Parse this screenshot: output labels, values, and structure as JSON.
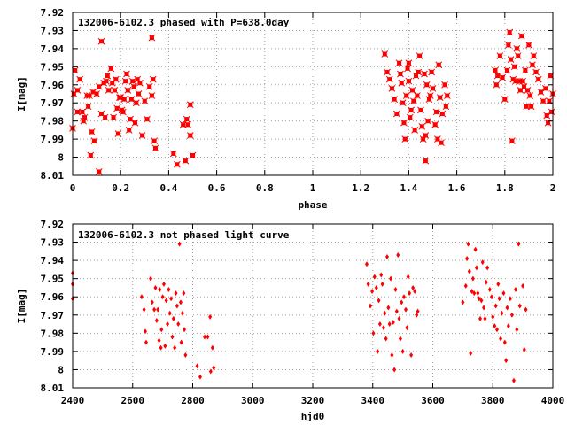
{
  "colors": {
    "points": "#ff0000",
    "axes": "#000000",
    "grid": "#a0a0a0",
    "background": "#ffffff"
  },
  "chart_data": [
    {
      "type": "scatter",
      "title": "132006-6102.3 phased with P=638.0day",
      "xlabel": "phase",
      "ylabel": "I[mag]",
      "xlim": [
        0,
        2
      ],
      "ylim": [
        8.01,
        7.92
      ],
      "y_inverted": true,
      "grid": true,
      "marker": "star",
      "xticks": [
        "0",
        "0.2",
        "0.4",
        "0.6",
        "0.8",
        "1",
        "1.2",
        "1.4",
        "1.6",
        "1.8",
        "2"
      ],
      "yticks": [
        "7.92",
        "7.93",
        "7.94",
        "7.95",
        "7.96",
        "7.97",
        "7.98",
        "7.99",
        "8",
        "8.01"
      ],
      "points": [
        [
          0.0,
          7.984
        ],
        [
          0.005,
          7.965
        ],
        [
          0.01,
          7.952
        ],
        [
          0.02,
          7.975
        ],
        [
          0.02,
          7.963
        ],
        [
          0.03,
          7.957
        ],
        [
          0.04,
          7.975
        ],
        [
          0.045,
          7.98
        ],
        [
          0.05,
          7.978
        ],
        [
          0.06,
          7.966
        ],
        [
          0.065,
          7.972
        ],
        [
          0.07,
          7.966
        ],
        [
          0.075,
          7.999
        ],
        [
          0.08,
          7.986
        ],
        [
          0.085,
          7.964
        ],
        [
          0.09,
          7.991
        ],
        [
          0.1,
          7.965
        ],
        [
          0.11,
          7.961
        ],
        [
          0.12,
          7.976
        ],
        [
          0.13,
          7.959
        ],
        [
          0.135,
          7.978
        ],
        [
          0.14,
          7.958
        ],
        [
          0.145,
          7.955
        ],
        [
          0.15,
          7.963
        ],
        [
          0.16,
          7.951
        ],
        [
          0.165,
          7.959
        ],
        [
          0.17,
          7.978
        ],
        [
          0.175,
          7.963
        ],
        [
          0.18,
          7.957
        ],
        [
          0.185,
          7.973
        ],
        [
          0.19,
          7.987
        ],
        [
          0.195,
          7.967
        ],
        [
          0.2,
          7.967
        ],
        [
          0.205,
          7.974
        ],
        [
          0.21,
          7.975
        ],
        [
          0.215,
          7.968
        ],
        [
          0.22,
          7.958
        ],
        [
          0.225,
          7.954
        ],
        [
          0.23,
          7.963
        ],
        [
          0.235,
          7.985
        ],
        [
          0.24,
          7.979
        ],
        [
          0.245,
          7.968
        ],
        [
          0.25,
          7.958
        ],
        [
          0.255,
          7.961
        ],
        [
          0.26,
          7.981
        ],
        [
          0.265,
          7.97
        ],
        [
          0.27,
          7.957
        ],
        [
          0.275,
          7.965
        ],
        [
          0.28,
          7.959
        ],
        [
          0.29,
          7.988
        ],
        [
          0.3,
          7.969
        ],
        [
          0.31,
          7.979
        ],
        [
          0.32,
          7.961
        ],
        [
          0.33,
          7.966
        ],
        [
          0.335,
          7.957
        ],
        [
          0.34,
          7.991
        ],
        [
          0.345,
          7.995
        ],
        [
          0.12,
          7.936
        ],
        [
          0.33,
          7.934
        ],
        [
          0.11,
          8.008
        ],
        [
          0.42,
          7.998
        ],
        [
          0.435,
          8.004
        ],
        [
          0.46,
          7.982
        ],
        [
          0.47,
          8.002
        ],
        [
          0.48,
          7.982
        ],
        [
          0.49,
          7.971
        ],
        [
          0.5,
          7.999
        ],
        [
          0.49,
          7.988
        ],
        [
          0.475,
          7.979
        ],
        [
          1.3,
          7.943
        ],
        [
          1.31,
          7.953
        ],
        [
          1.32,
          7.957
        ],
        [
          1.33,
          7.962
        ],
        [
          1.34,
          7.968
        ],
        [
          1.35,
          7.976
        ],
        [
          1.36,
          7.948
        ],
        [
          1.365,
          7.954
        ],
        [
          1.37,
          7.959
        ],
        [
          1.375,
          7.97
        ],
        [
          1.38,
          7.981
        ],
        [
          1.385,
          7.99
        ],
        [
          1.39,
          7.966
        ],
        [
          1.395,
          7.951
        ],
        [
          1.4,
          7.958
        ],
        [
          1.405,
          7.978
        ],
        [
          1.41,
          7.974
        ],
        [
          1.415,
          7.963
        ],
        [
          1.42,
          7.969
        ],
        [
          1.425,
          7.985
        ],
        [
          1.43,
          7.955
        ],
        [
          1.435,
          7.966
        ],
        [
          1.44,
          7.953
        ],
        [
          1.445,
          7.944
        ],
        [
          1.45,
          7.974
        ],
        [
          1.455,
          7.983
        ],
        [
          1.46,
          7.99
        ],
        [
          1.465,
          7.954
        ],
        [
          1.47,
          8.002
        ],
        [
          1.475,
          7.96
        ],
        [
          1.48,
          7.98
        ],
        [
          1.485,
          7.968
        ],
        [
          1.49,
          7.966
        ],
        [
          1.495,
          7.953
        ],
        [
          1.5,
          7.962
        ],
        [
          1.51,
          7.982
        ],
        [
          1.515,
          7.975
        ],
        [
          1.52,
          7.99
        ],
        [
          1.525,
          7.949
        ],
        [
          1.53,
          7.967
        ],
        [
          1.535,
          7.992
        ],
        [
          1.54,
          7.976
        ],
        [
          1.55,
          7.96
        ],
        [
          1.555,
          7.972
        ],
        [
          1.56,
          7.966
        ],
        [
          1.47,
          7.988
        ],
        [
          1.4,
          7.948
        ],
        [
          1.76,
          7.952
        ],
        [
          1.765,
          7.96
        ],
        [
          1.77,
          7.955
        ],
        [
          1.78,
          7.944
        ],
        [
          1.79,
          7.956
        ],
        [
          1.8,
          7.968
        ],
        [
          1.81,
          7.952
        ],
        [
          1.815,
          7.938
        ],
        [
          1.82,
          7.931
        ],
        [
          1.825,
          7.946
        ],
        [
          1.83,
          7.991
        ],
        [
          1.835,
          7.957
        ],
        [
          1.84,
          7.95
        ],
        [
          1.845,
          7.958
        ],
        [
          1.85,
          7.94
        ],
        [
          1.855,
          7.944
        ],
        [
          1.86,
          7.958
        ],
        [
          1.865,
          7.963
        ],
        [
          1.87,
          7.933
        ],
        [
          1.875,
          7.958
        ],
        [
          1.88,
          7.961
        ],
        [
          1.885,
          7.952
        ],
        [
          1.89,
          7.972
        ],
        [
          1.895,
          7.963
        ],
        [
          1.9,
          7.938
        ],
        [
          1.905,
          7.966
        ],
        [
          1.91,
          7.972
        ],
        [
          1.915,
          7.949
        ],
        [
          1.92,
          7.944
        ],
        [
          1.93,
          7.953
        ],
        [
          1.94,
          7.957
        ],
        [
          1.95,
          7.964
        ],
        [
          1.96,
          7.969
        ],
        [
          1.97,
          7.962
        ],
        [
          1.975,
          7.977
        ],
        [
          1.98,
          7.981
        ],
        [
          1.985,
          7.969
        ],
        [
          1.99,
          7.955
        ],
        [
          1.995,
          7.975
        ],
        [
          2.0,
          7.965
        ]
      ]
    },
    {
      "type": "scatter",
      "title": "132006-6102.3 not phased light curve",
      "xlabel": "hjd0",
      "ylabel": "I[mag]",
      "xlim": [
        2400,
        4000
      ],
      "ylim": [
        8.01,
        7.92
      ],
      "y_inverted": true,
      "grid": true,
      "marker": "diamond",
      "xticks": [
        "2400",
        "2600",
        "2800",
        "3000",
        "3200",
        "3400",
        "3600",
        "3800",
        "4000"
      ],
      "yticks": [
        "7.92",
        "7.93",
        "7.94",
        "7.95",
        "7.96",
        "7.97",
        "7.98",
        "7.99",
        "8",
        "8.01"
      ],
      "points": [
        [
          2400,
          7.947
        ],
        [
          2400,
          7.953
        ],
        [
          2400,
          7.961
        ],
        [
          2630,
          7.96
        ],
        [
          2638,
          7.967
        ],
        [
          2642,
          7.979
        ],
        [
          2645,
          7.985
        ],
        [
          2660,
          7.95
        ],
        [
          2665,
          7.963
        ],
        [
          2672,
          7.967
        ],
        [
          2676,
          7.955
        ],
        [
          2680,
          7.973
        ],
        [
          2684,
          7.967
        ],
        [
          2688,
          7.984
        ],
        [
          2690,
          7.956
        ],
        [
          2694,
          7.988
        ],
        [
          2696,
          7.978
        ],
        [
          2700,
          7.96
        ],
        [
          2704,
          7.953
        ],
        [
          2708,
          7.987
        ],
        [
          2712,
          7.962
        ],
        [
          2716,
          7.975
        ],
        [
          2720,
          7.956
        ],
        [
          2724,
          7.969
        ],
        [
          2728,
          7.961
        ],
        [
          2732,
          7.982
        ],
        [
          2736,
          7.972
        ],
        [
          2740,
          7.988
        ],
        [
          2744,
          7.958
        ],
        [
          2748,
          7.965
        ],
        [
          2752,
          7.975
        ],
        [
          2756,
          7.931
        ],
        [
          2760,
          7.963
        ],
        [
          2762,
          7.985
        ],
        [
          2766,
          7.969
        ],
        [
          2770,
          7.958
        ],
        [
          2772,
          7.978
        ],
        [
          2776,
          7.992
        ],
        [
          2815,
          7.998
        ],
        [
          2825,
          8.004
        ],
        [
          2840,
          7.982
        ],
        [
          2850,
          7.982
        ],
        [
          2858,
          7.971
        ],
        [
          2860,
          8.001
        ],
        [
          2866,
          7.988
        ],
        [
          2870,
          7.999
        ],
        [
          3380,
          7.942
        ],
        [
          3385,
          7.953
        ],
        [
          3392,
          7.965
        ],
        [
          3398,
          7.957
        ],
        [
          3402,
          7.98
        ],
        [
          3406,
          7.949
        ],
        [
          3412,
          7.955
        ],
        [
          3416,
          7.99
        ],
        [
          3420,
          7.962
        ],
        [
          3424,
          7.975
        ],
        [
          3428,
          7.948
        ],
        [
          3432,
          7.953
        ],
        [
          3436,
          7.977
        ],
        [
          3440,
          7.969
        ],
        [
          3444,
          7.983
        ],
        [
          3448,
          7.938
        ],
        [
          3452,
          7.966
        ],
        [
          3456,
          7.975
        ],
        [
          3460,
          7.95
        ],
        [
          3464,
          7.992
        ],
        [
          3468,
          7.974
        ],
        [
          3472,
          8.0
        ],
        [
          3476,
          7.956
        ],
        [
          3480,
          7.968
        ],
        [
          3484,
          7.937
        ],
        [
          3488,
          7.972
        ],
        [
          3492,
          7.983
        ],
        [
          3496,
          7.963
        ],
        [
          3500,
          7.99
        ],
        [
          3504,
          7.96
        ],
        [
          3510,
          7.967
        ],
        [
          3514,
          7.977
        ],
        [
          3518,
          7.949
        ],
        [
          3522,
          7.958
        ],
        [
          3528,
          7.992
        ],
        [
          3534,
          7.955
        ],
        [
          3540,
          7.957
        ],
        [
          3546,
          7.97
        ],
        [
          3550,
          7.968
        ],
        [
          3700,
          7.963
        ],
        [
          3710,
          7.954
        ],
        [
          3714,
          7.939
        ],
        [
          3718,
          7.931
        ],
        [
          3722,
          7.946
        ],
        [
          3726,
          7.991
        ],
        [
          3730,
          7.957
        ],
        [
          3734,
          7.95
        ],
        [
          3738,
          7.958
        ],
        [
          3742,
          7.934
        ],
        [
          3746,
          7.944
        ],
        [
          3750,
          7.958
        ],
        [
          3754,
          7.961
        ],
        [
          3758,
          7.972
        ],
        [
          3762,
          7.962
        ],
        [
          3766,
          7.941
        ],
        [
          3770,
          7.966
        ],
        [
          3774,
          7.972
        ],
        [
          3778,
          7.952
        ],
        [
          3782,
          7.944
        ],
        [
          3790,
          7.956
        ],
        [
          3796,
          7.96
        ],
        [
          3800,
          7.971
        ],
        [
          3806,
          7.976
        ],
        [
          3810,
          7.965
        ],
        [
          3814,
          7.978
        ],
        [
          3818,
          7.953
        ],
        [
          3822,
          7.961
        ],
        [
          3826,
          7.983
        ],
        [
          3830,
          7.969
        ],
        [
          3836,
          7.958
        ],
        [
          3840,
          7.985
        ],
        [
          3844,
          7.995
        ],
        [
          3848,
          7.966
        ],
        [
          3852,
          7.976
        ],
        [
          3858,
          7.961
        ],
        [
          3864,
          7.97
        ],
        [
          3870,
          8.006
        ],
        [
          3876,
          7.956
        ],
        [
          3880,
          7.978
        ],
        [
          3886,
          7.931
        ],
        [
          3890,
          7.965
        ],
        [
          3900,
          7.954
        ],
        [
          3905,
          7.989
        ],
        [
          3910,
          7.967
        ]
      ]
    }
  ]
}
